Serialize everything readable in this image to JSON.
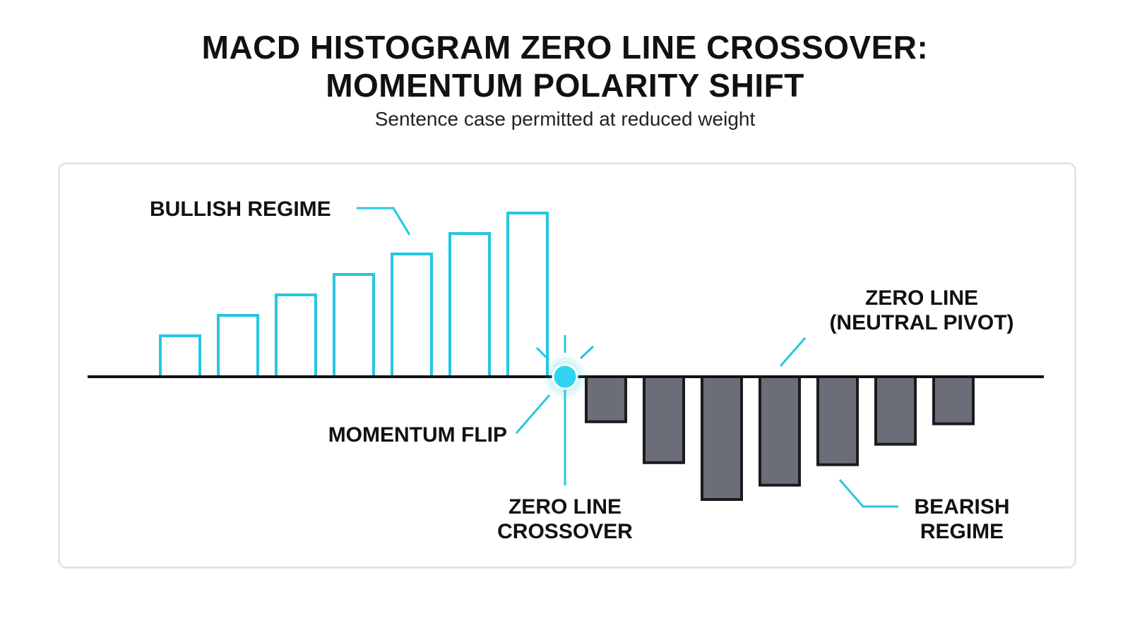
{
  "header": {
    "title_line1": "MACD HISTOGRAM ZERO LINE CROSSOVER:",
    "title_line2": "MOMENTUM POLARITY SHIFT",
    "subtitle": "Sentence case permitted at reduced weight"
  },
  "colors": {
    "bullish_stroke": "#26c6e0",
    "bearish_fill": "#6b6e78",
    "bearish_stroke": "#1b1b1f",
    "zero_line": "#111111",
    "callout": "#26c6e0",
    "text": "#111111"
  },
  "diagram": {
    "bullish_values": [
      2,
      3,
      4,
      5,
      6,
      7,
      8
    ],
    "bearish_values": [
      -2.2,
      -4.2,
      -6.0,
      -5.3,
      -4.3,
      -3.3,
      -2.3
    ],
    "labels": {
      "bullish_regime": "BULLISH REGIME",
      "zero_line_line1": "ZERO LINE",
      "zero_line_line2": "(NEUTRAL PIVOT)",
      "momentum_flip": "MOMENTUM FLIP",
      "crossover_line1": "ZERO LINE",
      "crossover_line2": "CROSSOVER",
      "bearish_line1": "BEARISH",
      "bearish_line2": "REGIME"
    },
    "icons": {
      "crossover_marker": "glowing-dot-icon"
    }
  }
}
